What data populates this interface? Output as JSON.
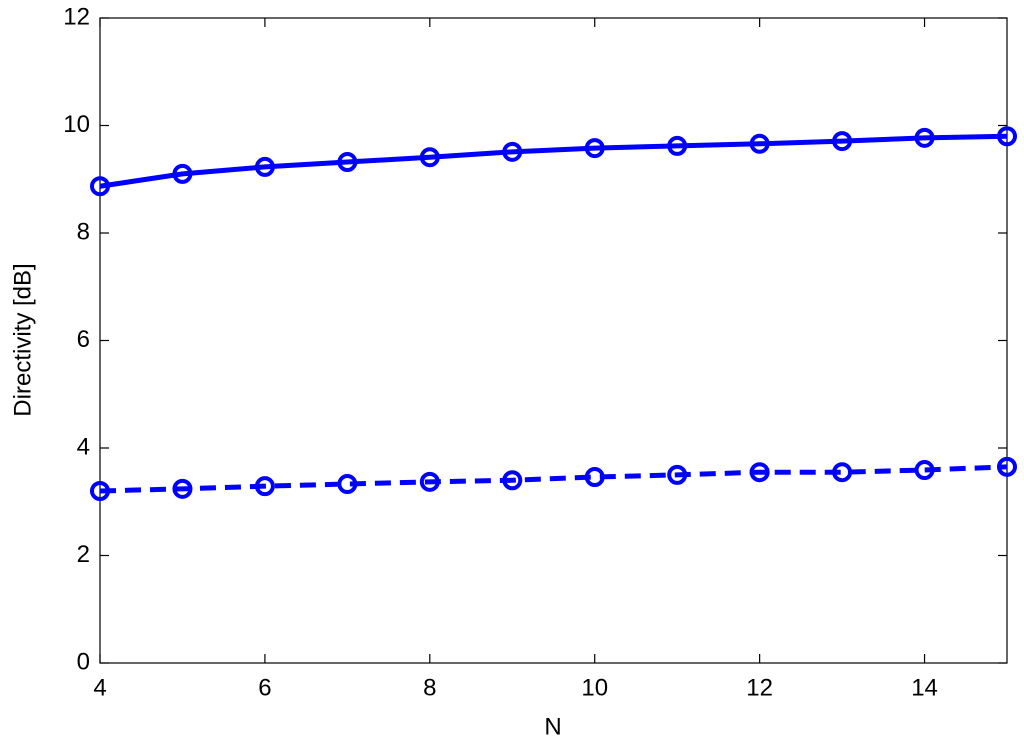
{
  "chart_data": {
    "type": "line",
    "x_label": "N",
    "y_label": "Directivity [dB]",
    "x": [
      4,
      5,
      6,
      7,
      8,
      9,
      10,
      11,
      12,
      13,
      14,
      15
    ],
    "series": [
      {
        "color": "#0000ff",
        "linestyle": "solid",
        "marker": "o",
        "values": [
          8.87,
          9.1,
          9.23,
          9.32,
          9.41,
          9.51,
          9.58,
          9.62,
          9.66,
          9.71,
          9.77,
          9.8
        ]
      },
      {
        "color": "#0000ff",
        "linestyle": "dashed",
        "marker": "o",
        "values": [
          3.2,
          3.24,
          3.29,
          3.33,
          3.37,
          3.4,
          3.46,
          3.5,
          3.55,
          3.55,
          3.59,
          3.65
        ]
      }
    ],
    "xlim": [
      4,
      15
    ],
    "xticks": [
      4,
      6,
      8,
      10,
      12,
      14
    ],
    "ylim": [
      0,
      12
    ],
    "yticks": [
      0,
      2,
      4,
      6,
      8,
      10,
      12
    ],
    "grid": false,
    "box": true
  }
}
